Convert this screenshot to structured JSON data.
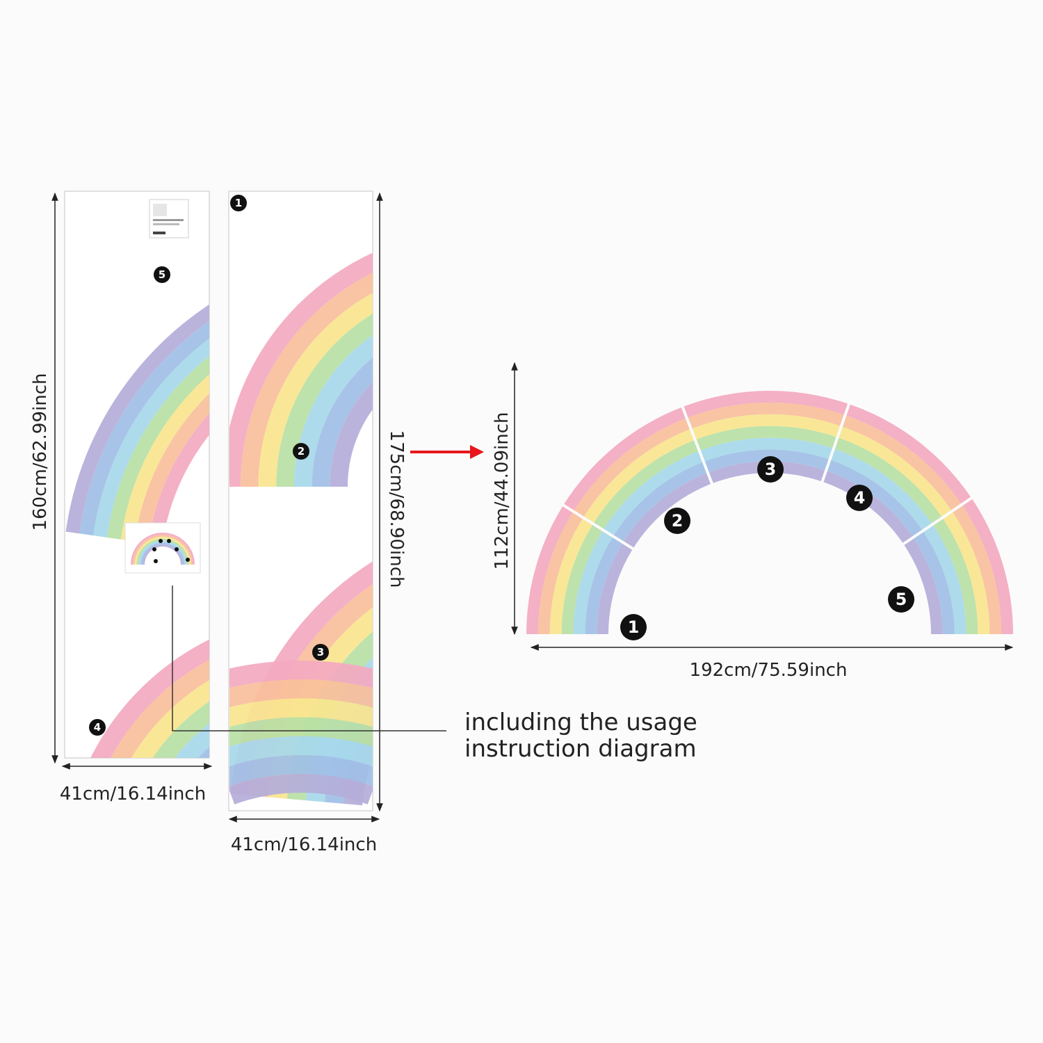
{
  "sheets": {
    "sheet_a": {
      "height_label": "160cm/62.99inch",
      "width_label": "41cm/16.14inch",
      "pieces": [
        "5",
        "4"
      ]
    },
    "sheet_b": {
      "height_label": "175cm/68.90inch",
      "width_label": "41cm/16.14inch",
      "pieces": [
        "1",
        "2",
        "3"
      ]
    }
  },
  "assembled": {
    "height_label": "112cm/44.09inch",
    "width_label": "192cm/75.59inch",
    "pieces": [
      "1",
      "2",
      "3",
      "4",
      "5"
    ]
  },
  "callout": {
    "line1": "including the usage",
    "line2": "instruction diagram"
  },
  "colors": {
    "rainbow_bands": [
      "#f3a9c0",
      "#f8bf9b",
      "#f9e58e",
      "#b9dfa4",
      "#a6d8ea",
      "#9fbfe6",
      "#b4aed9"
    ],
    "arrow": "#e8161b",
    "badge": "#111111",
    "sheet_border": "#d8d8d8"
  }
}
